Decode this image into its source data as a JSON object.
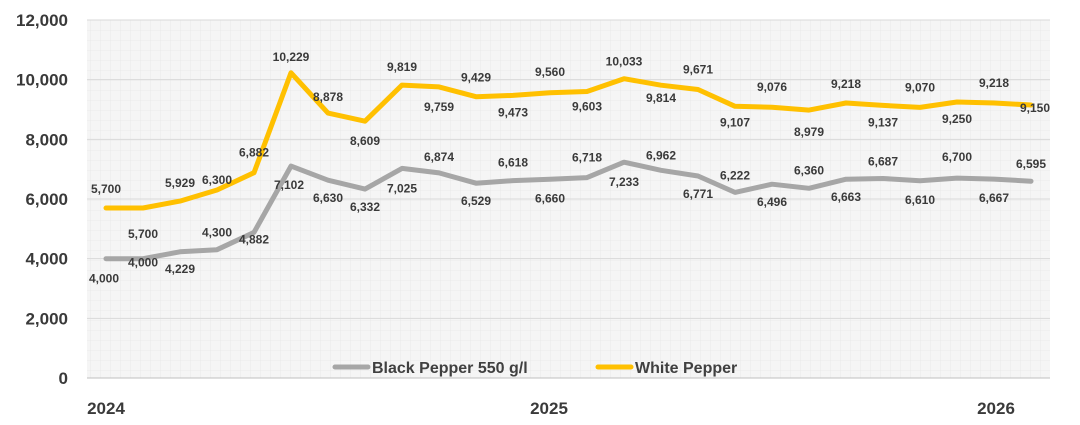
{
  "chart_data": {
    "type": "line",
    "title": "",
    "xlabel": "",
    "ylabel": "",
    "ylim": [
      0,
      12000
    ],
    "y_ticks": [
      "0",
      "2,000",
      "4,000",
      "6,000",
      "8,000",
      "10,000",
      "12,000"
    ],
    "year_labels": [
      "2024",
      "2025",
      "2026"
    ],
    "grid": true,
    "legend_position": "bottom-center",
    "series": [
      {
        "name": "Black Pepper 550 g/l",
        "color": "#a6a6a6",
        "values": [
          4000,
          4000,
          4229,
          4300,
          4882,
          7102,
          6630,
          6332,
          7025,
          6874,
          6529,
          6618,
          6660,
          6718,
          7233,
          6962,
          6771,
          6222,
          6496,
          6360,
          6663,
          6687,
          6610,
          6700,
          6667,
          6595
        ],
        "labels": [
          "4,000",
          "4,000",
          "4,229",
          "4,300",
          "4,882",
          "7,102",
          "6,630",
          "6,332",
          "7,025",
          "6,874",
          "6,529",
          "6,618",
          "6,660",
          "6,718",
          "7,233",
          "6,962",
          "6,771",
          "6,222",
          "6,496",
          "6,360",
          "6,663",
          "6,687",
          "6,610",
          "6,700",
          "6,667",
          "6,595"
        ]
      },
      {
        "name": "White Pepper",
        "color": "#ffc000",
        "values": [
          5700,
          5700,
          5929,
          6300,
          6882,
          10229,
          8878,
          8609,
          9819,
          9759,
          9429,
          9473,
          9560,
          9603,
          10033,
          9814,
          9671,
          9107,
          9076,
          8979,
          9218,
          9137,
          9070,
          9250,
          9218,
          9150
        ],
        "labels": [
          "5,700",
          "5,700",
          "5,929",
          "6,300",
          "6,882",
          "10,229",
          "8,878",
          "8,609",
          "9,819",
          "9,759",
          "9,429",
          "9,473",
          "9,560",
          "9,603",
          "10,033",
          "9,814",
          "9,671",
          "9,107",
          "9,076",
          "8,979",
          "9,218",
          "9,137",
          "9,070",
          "9,250",
          "9,218",
          "9,150"
        ]
      }
    ]
  }
}
